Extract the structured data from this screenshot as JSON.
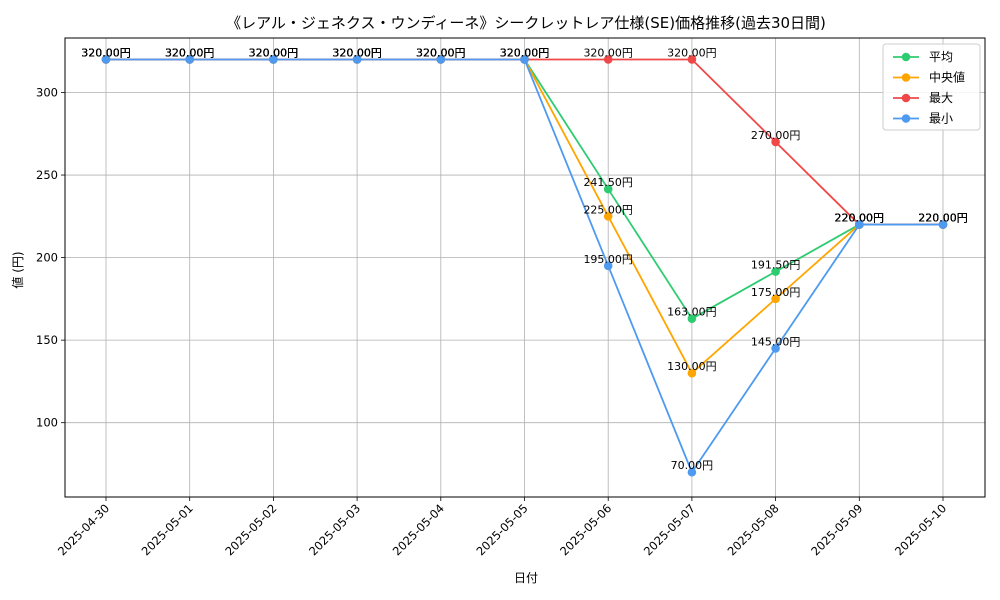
{
  "chart_data": {
    "type": "line",
    "title": "《レアル・ジェネクス・ウンディーネ》シークレットレア仕様(SE)価格推移(過去30日間)",
    "xlabel": "日付",
    "ylabel": "値 (円)",
    "x": [
      "2025-04-30",
      "2025-05-01",
      "2025-05-02",
      "2025-05-03",
      "2025-05-04",
      "2025-05-05",
      "2025-05-06",
      "2025-05-07",
      "2025-05-08",
      "2025-05-09",
      "2025-05-10"
    ],
    "ylim": [
      55,
      333
    ],
    "yticks": [
      100,
      150,
      200,
      250,
      300
    ],
    "grid": true,
    "legend_position": "top-right",
    "value_suffix": "円",
    "series": [
      {
        "name": "平均",
        "color": "#2ecc71",
        "values": [
          320,
          320,
          320,
          320,
          320,
          320,
          241.5,
          163,
          191.5,
          220,
          220
        ]
      },
      {
        "name": "中央値",
        "color": "#ffa500",
        "values": [
          320,
          320,
          320,
          320,
          320,
          320,
          225,
          130,
          175,
          220,
          220
        ]
      },
      {
        "name": "最大",
        "color": "#f04848",
        "values": [
          320,
          320,
          320,
          320,
          320,
          320,
          320,
          320,
          270,
          220,
          220
        ]
      },
      {
        "name": "最小",
        "color": "#4d9af0",
        "values": [
          320,
          320,
          320,
          320,
          320,
          320,
          195,
          70,
          145,
          220,
          220
        ]
      }
    ]
  }
}
